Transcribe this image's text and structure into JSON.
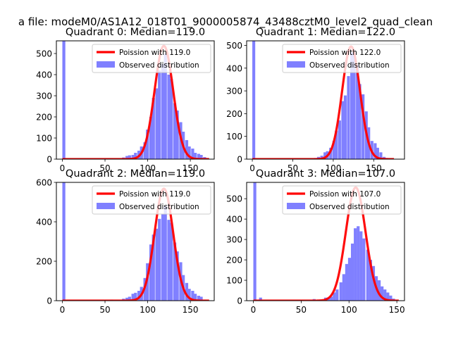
{
  "figure": {
    "suptitle": "a file: modeM0/AS1A12_018T01_9000005874_43488cztM0_level2_quad_clean"
  },
  "chart_data": [
    {
      "type": "bar",
      "title": "Quadrant 0: Median=119.0",
      "legend": [
        "Poission with 119.0",
        "Observed distribution"
      ],
      "legend_position": "top-right",
      "xlim": [
        -7,
        178
      ],
      "ylim": [
        0,
        560
      ],
      "xticks": [
        0,
        50,
        100,
        150
      ],
      "yticks": [
        0,
        100,
        200,
        300,
        400,
        500
      ],
      "bin_width": 3.5,
      "hist": [
        [
          0,
          560
        ],
        [
          56,
          3
        ],
        [
          63,
          2
        ],
        [
          70,
          8
        ],
        [
          74,
          15
        ],
        [
          77,
          18
        ],
        [
          81,
          20
        ],
        [
          84,
          30
        ],
        [
          88,
          40
        ],
        [
          91,
          60
        ],
        [
          95,
          80
        ],
        [
          98,
          140
        ],
        [
          102,
          200
        ],
        [
          105,
          290
        ],
        [
          109,
          335
        ],
        [
          112,
          420
        ],
        [
          116,
          450
        ],
        [
          119,
          500
        ],
        [
          123,
          400
        ],
        [
          126,
          380
        ],
        [
          130,
          265
        ],
        [
          133,
          230
        ],
        [
          137,
          175
        ],
        [
          140,
          130
        ],
        [
          144,
          90
        ],
        [
          147,
          60
        ],
        [
          151,
          50
        ],
        [
          154,
          30
        ],
        [
          158,
          25
        ],
        [
          161,
          20
        ],
        [
          165,
          10
        ],
        [
          168,
          5
        ]
      ],
      "poisson": {
        "mean": 119.0,
        "peak": 536,
        "x_range": [
          0,
          172
        ]
      },
      "colors": {
        "hist": "#8080ff",
        "curve": "#ff0000"
      }
    },
    {
      "type": "bar",
      "title": "Quadrant 1: Median=122.0",
      "legend": [
        "Poission with 122.0",
        "Observed distribution"
      ],
      "legend_position": "top-right",
      "xlim": [
        -7,
        188
      ],
      "ylim": [
        0,
        520
      ],
      "xticks": [
        0,
        50,
        100,
        150
      ],
      "yticks": [
        0,
        100,
        200,
        300,
        400,
        500
      ],
      "bin_width": 3.6,
      "hist": [
        [
          0,
          520
        ],
        [
          72,
          2
        ],
        [
          76,
          5
        ],
        [
          80,
          10
        ],
        [
          84,
          15
        ],
        [
          88,
          30
        ],
        [
          91,
          35
        ],
        [
          95,
          50
        ],
        [
          99,
          80
        ],
        [
          102,
          125
        ],
        [
          106,
          170
        ],
        [
          110,
          255
        ],
        [
          113,
          280
        ],
        [
          117,
          365
        ],
        [
          121,
          470
        ],
        [
          124,
          465
        ],
        [
          128,
          415
        ],
        [
          131,
          330
        ],
        [
          135,
          285
        ],
        [
          139,
          210
        ],
        [
          142,
          140
        ],
        [
          146,
          80
        ],
        [
          150,
          70
        ],
        [
          153,
          50
        ],
        [
          157,
          30
        ],
        [
          161,
          10
        ],
        [
          164,
          5
        ]
      ],
      "poisson": {
        "mean": 122.0,
        "peak": 495,
        "x_range": [
          0,
          175
        ]
      },
      "colors": {
        "hist": "#8080ff",
        "curve": "#ff0000"
      }
    },
    {
      "type": "bar",
      "title": "Quadrant 2: Median=119.0",
      "legend": [
        "Poission with 119.0",
        "Observed distribution"
      ],
      "legend_position": "top-right",
      "xlim": [
        -7,
        178
      ],
      "ylim": [
        0,
        600
      ],
      "xticks": [
        0,
        50,
        100,
        150
      ],
      "yticks": [
        0,
        200,
        400,
        600
      ],
      "bin_width": 3.5,
      "hist": [
        [
          0,
          600
        ],
        [
          56,
          5
        ],
        [
          63,
          2
        ],
        [
          70,
          10
        ],
        [
          74,
          15
        ],
        [
          77,
          20
        ],
        [
          81,
          35
        ],
        [
          84,
          40
        ],
        [
          88,
          50
        ],
        [
          91,
          70
        ],
        [
          95,
          115
        ],
        [
          98,
          190
        ],
        [
          102,
          285
        ],
        [
          105,
          335
        ],
        [
          109,
          365
        ],
        [
          112,
          415
        ],
        [
          116,
          440
        ],
        [
          119,
          480
        ],
        [
          123,
          410
        ],
        [
          126,
          395
        ],
        [
          130,
          295
        ],
        [
          133,
          250
        ],
        [
          137,
          195
        ],
        [
          140,
          130
        ],
        [
          144,
          90
        ],
        [
          147,
          60
        ],
        [
          151,
          50
        ],
        [
          154,
          35
        ],
        [
          158,
          25
        ],
        [
          161,
          20
        ],
        [
          165,
          5
        ]
      ],
      "poisson": {
        "mean": 119.0,
        "peak": 568,
        "x_range": [
          0,
          172
        ]
      },
      "colors": {
        "hist": "#8080ff",
        "curve": "#ff0000"
      }
    },
    {
      "type": "bar",
      "title": "Quadrant 3: Median=107.0",
      "legend": [
        "Poission with 107.0",
        "Observed distribution"
      ],
      "legend_position": "top-right",
      "xlim": [
        -7,
        158
      ],
      "ylim": [
        0,
        580
      ],
      "xticks": [
        0,
        50,
        100,
        150
      ],
      "yticks": [
        0,
        100,
        200,
        300,
        400,
        500
      ],
      "bin_width": 3.1,
      "hist": [
        [
          0,
          580
        ],
        [
          6,
          15
        ],
        [
          62,
          8
        ],
        [
          68,
          5
        ],
        [
          74,
          15
        ],
        [
          77,
          15
        ],
        [
          80,
          20
        ],
        [
          83,
          40
        ],
        [
          86,
          55
        ],
        [
          90,
          90
        ],
        [
          93,
          130
        ],
        [
          96,
          180
        ],
        [
          99,
          210
        ],
        [
          102,
          280
        ],
        [
          105,
          355
        ],
        [
          108,
          365
        ],
        [
          111,
          340
        ],
        [
          114,
          305
        ],
        [
          118,
          250
        ],
        [
          121,
          200
        ],
        [
          124,
          170
        ],
        [
          127,
          120
        ],
        [
          130,
          100
        ],
        [
          133,
          70
        ],
        [
          136,
          55
        ],
        [
          139,
          40
        ],
        [
          142,
          25
        ],
        [
          145,
          10
        ]
      ],
      "poisson": {
        "mean": 107.0,
        "peak": 555,
        "x_range": [
          0,
          152
        ]
      },
      "colors": {
        "hist": "#8080ff",
        "curve": "#ff0000"
      }
    }
  ]
}
